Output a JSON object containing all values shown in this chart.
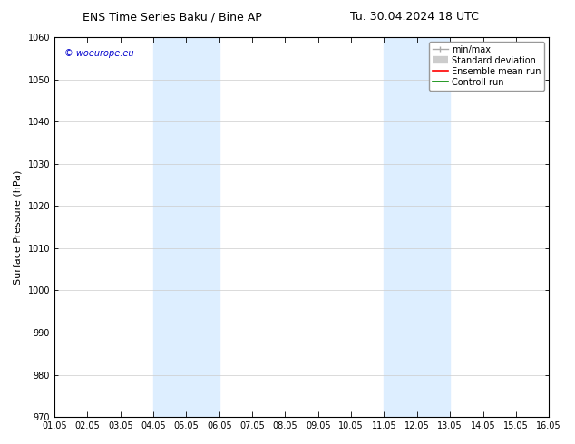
{
  "title_left": "ENS Time Series Baku / Bine AP",
  "title_right": "Tu. 30.04.2024 18 UTC",
  "ylabel": "Surface Pressure (hPa)",
  "xlabel": "",
  "ylim": [
    970,
    1060
  ],
  "yticks": [
    970,
    980,
    990,
    1000,
    1010,
    1020,
    1030,
    1040,
    1050,
    1060
  ],
  "xtick_labels": [
    "01.05",
    "02.05",
    "03.05",
    "04.05",
    "05.05",
    "06.05",
    "07.05",
    "08.05",
    "09.05",
    "10.05",
    "11.05",
    "12.05",
    "13.05",
    "14.05",
    "15.05",
    "16.05"
  ],
  "xtick_positions": [
    0,
    1,
    2,
    3,
    4,
    5,
    6,
    7,
    8,
    9,
    10,
    11,
    12,
    13,
    14,
    15
  ],
  "shaded_bands": [
    {
      "x_start": 3,
      "x_end": 5,
      "color": "#ddeeff"
    },
    {
      "x_start": 10,
      "x_end": 12,
      "color": "#ddeeff"
    }
  ],
  "watermark_text": "© woeurope.eu",
  "watermark_color": "#0000cc",
  "background_color": "#ffffff",
  "plot_bg_color": "#ffffff",
  "grid_color": "#cccccc",
  "legend_entries": [
    {
      "label": "min/max",
      "color": "#aaaaaa",
      "linestyle": "-"
    },
    {
      "label": "Standard deviation",
      "color": "#cccccc",
      "linestyle": "-"
    },
    {
      "label": "Ensemble mean run",
      "color": "#ff0000",
      "linestyle": "-"
    },
    {
      "label": "Controll run",
      "color": "#008800",
      "linestyle": "-"
    }
  ],
  "title_fontsize": 9,
  "tick_fontsize": 7,
  "ylabel_fontsize": 8,
  "legend_fontsize": 7
}
